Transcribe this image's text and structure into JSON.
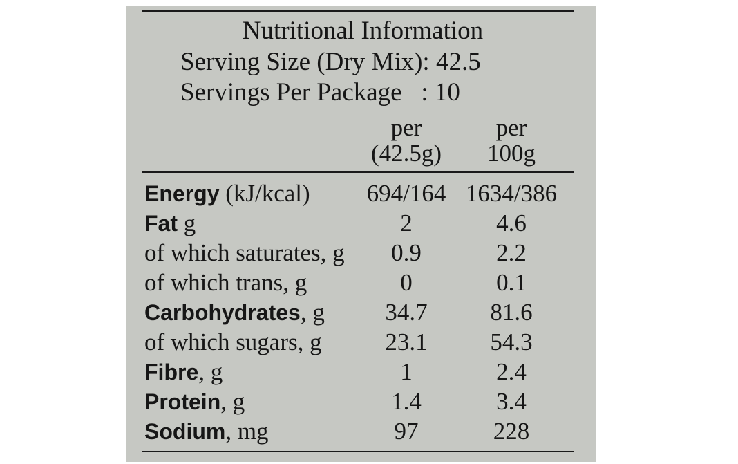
{
  "title": "Nutritional Information",
  "serving_size": "Serving Size (Dry Mix): 42.5",
  "servings_per_package": "Servings Per Package   : 10",
  "columns": [
    {
      "line1": "per",
      "line2": "(42.5g)"
    },
    {
      "line1": "per",
      "line2": "100g"
    }
  ],
  "rows": [
    {
      "bold": "Energy",
      "rest": " (kJ/kcal)",
      "per_serving": "694/164",
      "per_100g": "1634/386"
    },
    {
      "bold": "Fat",
      "rest": " g",
      "per_serving": "2",
      "per_100g": "4.6"
    },
    {
      "bold": "",
      "rest": "of which saturates, g",
      "per_serving": "0.9",
      "per_100g": "2.2"
    },
    {
      "bold": "",
      "rest": "of which trans, g",
      "per_serving": "0",
      "per_100g": "0.1"
    },
    {
      "bold": "Carbohydrates",
      "rest": ", g",
      "per_serving": "34.7",
      "per_100g": "81.6"
    },
    {
      "bold": "",
      "rest": "of which sugars, g",
      "per_serving": "23.1",
      "per_100g": "54.3"
    },
    {
      "bold": "Fibre",
      "rest": ", g",
      "per_serving": "1",
      "per_100g": "2.4"
    },
    {
      "bold": "Protein",
      "rest": ", g",
      "per_serving": "1.4",
      "per_100g": "3.4"
    },
    {
      "bold": "Sodium",
      "rest": ", mg",
      "per_serving": "97",
      "per_100g": "228"
    }
  ]
}
